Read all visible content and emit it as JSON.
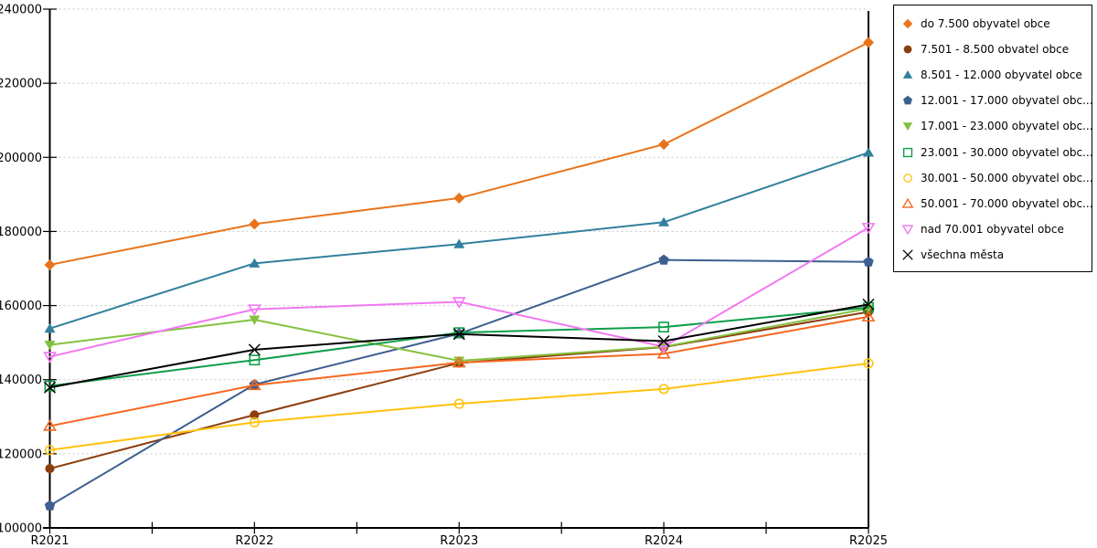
{
  "chart_data": {
    "type": "line",
    "title": "",
    "xlabel": "",
    "ylabel": "",
    "categories": [
      "R2021",
      "R2022",
      "R2023",
      "R2024",
      "R2025"
    ],
    "ylim": [
      100000,
      240000
    ],
    "y_ticks": [
      100000,
      120000,
      140000,
      160000,
      180000,
      200000,
      220000,
      240000
    ],
    "grid": "horizontal-dashed",
    "grid_color": "#c6c6c6",
    "axis_color": "#000000",
    "legend_position": "top-right",
    "series": [
      {
        "name": "do 7.500 obyvatel obce",
        "marker": "diamond-filled",
        "color": "#E8731A",
        "values": [
          171000,
          182000,
          189000,
          203500,
          231000
        ]
      },
      {
        "name": "7.501 - 8.500 obvatel obce",
        "marker": "circle-filled",
        "color": "#8C3D0D",
        "values": [
          116000,
          130500,
          144500,
          148800,
          158300
        ]
      },
      {
        "name": "8.501 - 12.000 obyvatel obce",
        "marker": "triangle-up-filled",
        "color": "#31809D",
        "values": [
          153800,
          171400,
          176600,
          182500,
          201300
        ]
      },
      {
        "name": "12.001 - 17.000 obyvatel obc...",
        "marker": "pentagon-filled",
        "color": "#3D5F8F",
        "values": [
          106000,
          138700,
          152400,
          172300,
          171800
        ]
      },
      {
        "name": "17.001 - 23.000 obyvatel obc...",
        "marker": "triangle-down-filled",
        "color": "#83C13F",
        "values": [
          149400,
          156200,
          145100,
          148900,
          159200
        ]
      },
      {
        "name": "23.001 - 30.000 obyvatel obc...",
        "marker": "square-hollow",
        "color": "#0D9E49",
        "values": [
          138300,
          145300,
          152700,
          154200,
          159500
        ]
      },
      {
        "name": "30.001 - 50.000 obyvatel obc...",
        "marker": "circle-hollow",
        "color": "#FFC30D",
        "values": [
          121000,
          128500,
          133500,
          137500,
          144400
        ]
      },
      {
        "name": "50.001 - 70.000 obyvatel obc...",
        "marker": "triangle-up-hollow",
        "color": "#F3671F",
        "values": [
          127500,
          138500,
          144600,
          147000,
          157000
        ]
      },
      {
        "name": "nad 70.001 obyvatel obce",
        "marker": "triangle-down-hollow",
        "color": "#F277F2",
        "values": [
          146200,
          159000,
          161000,
          148900,
          181000
        ]
      },
      {
        "name": "všechna města",
        "marker": "x",
        "color": "#000000",
        "values": [
          137900,
          148100,
          152300,
          150400,
          160300
        ]
      }
    ]
  }
}
